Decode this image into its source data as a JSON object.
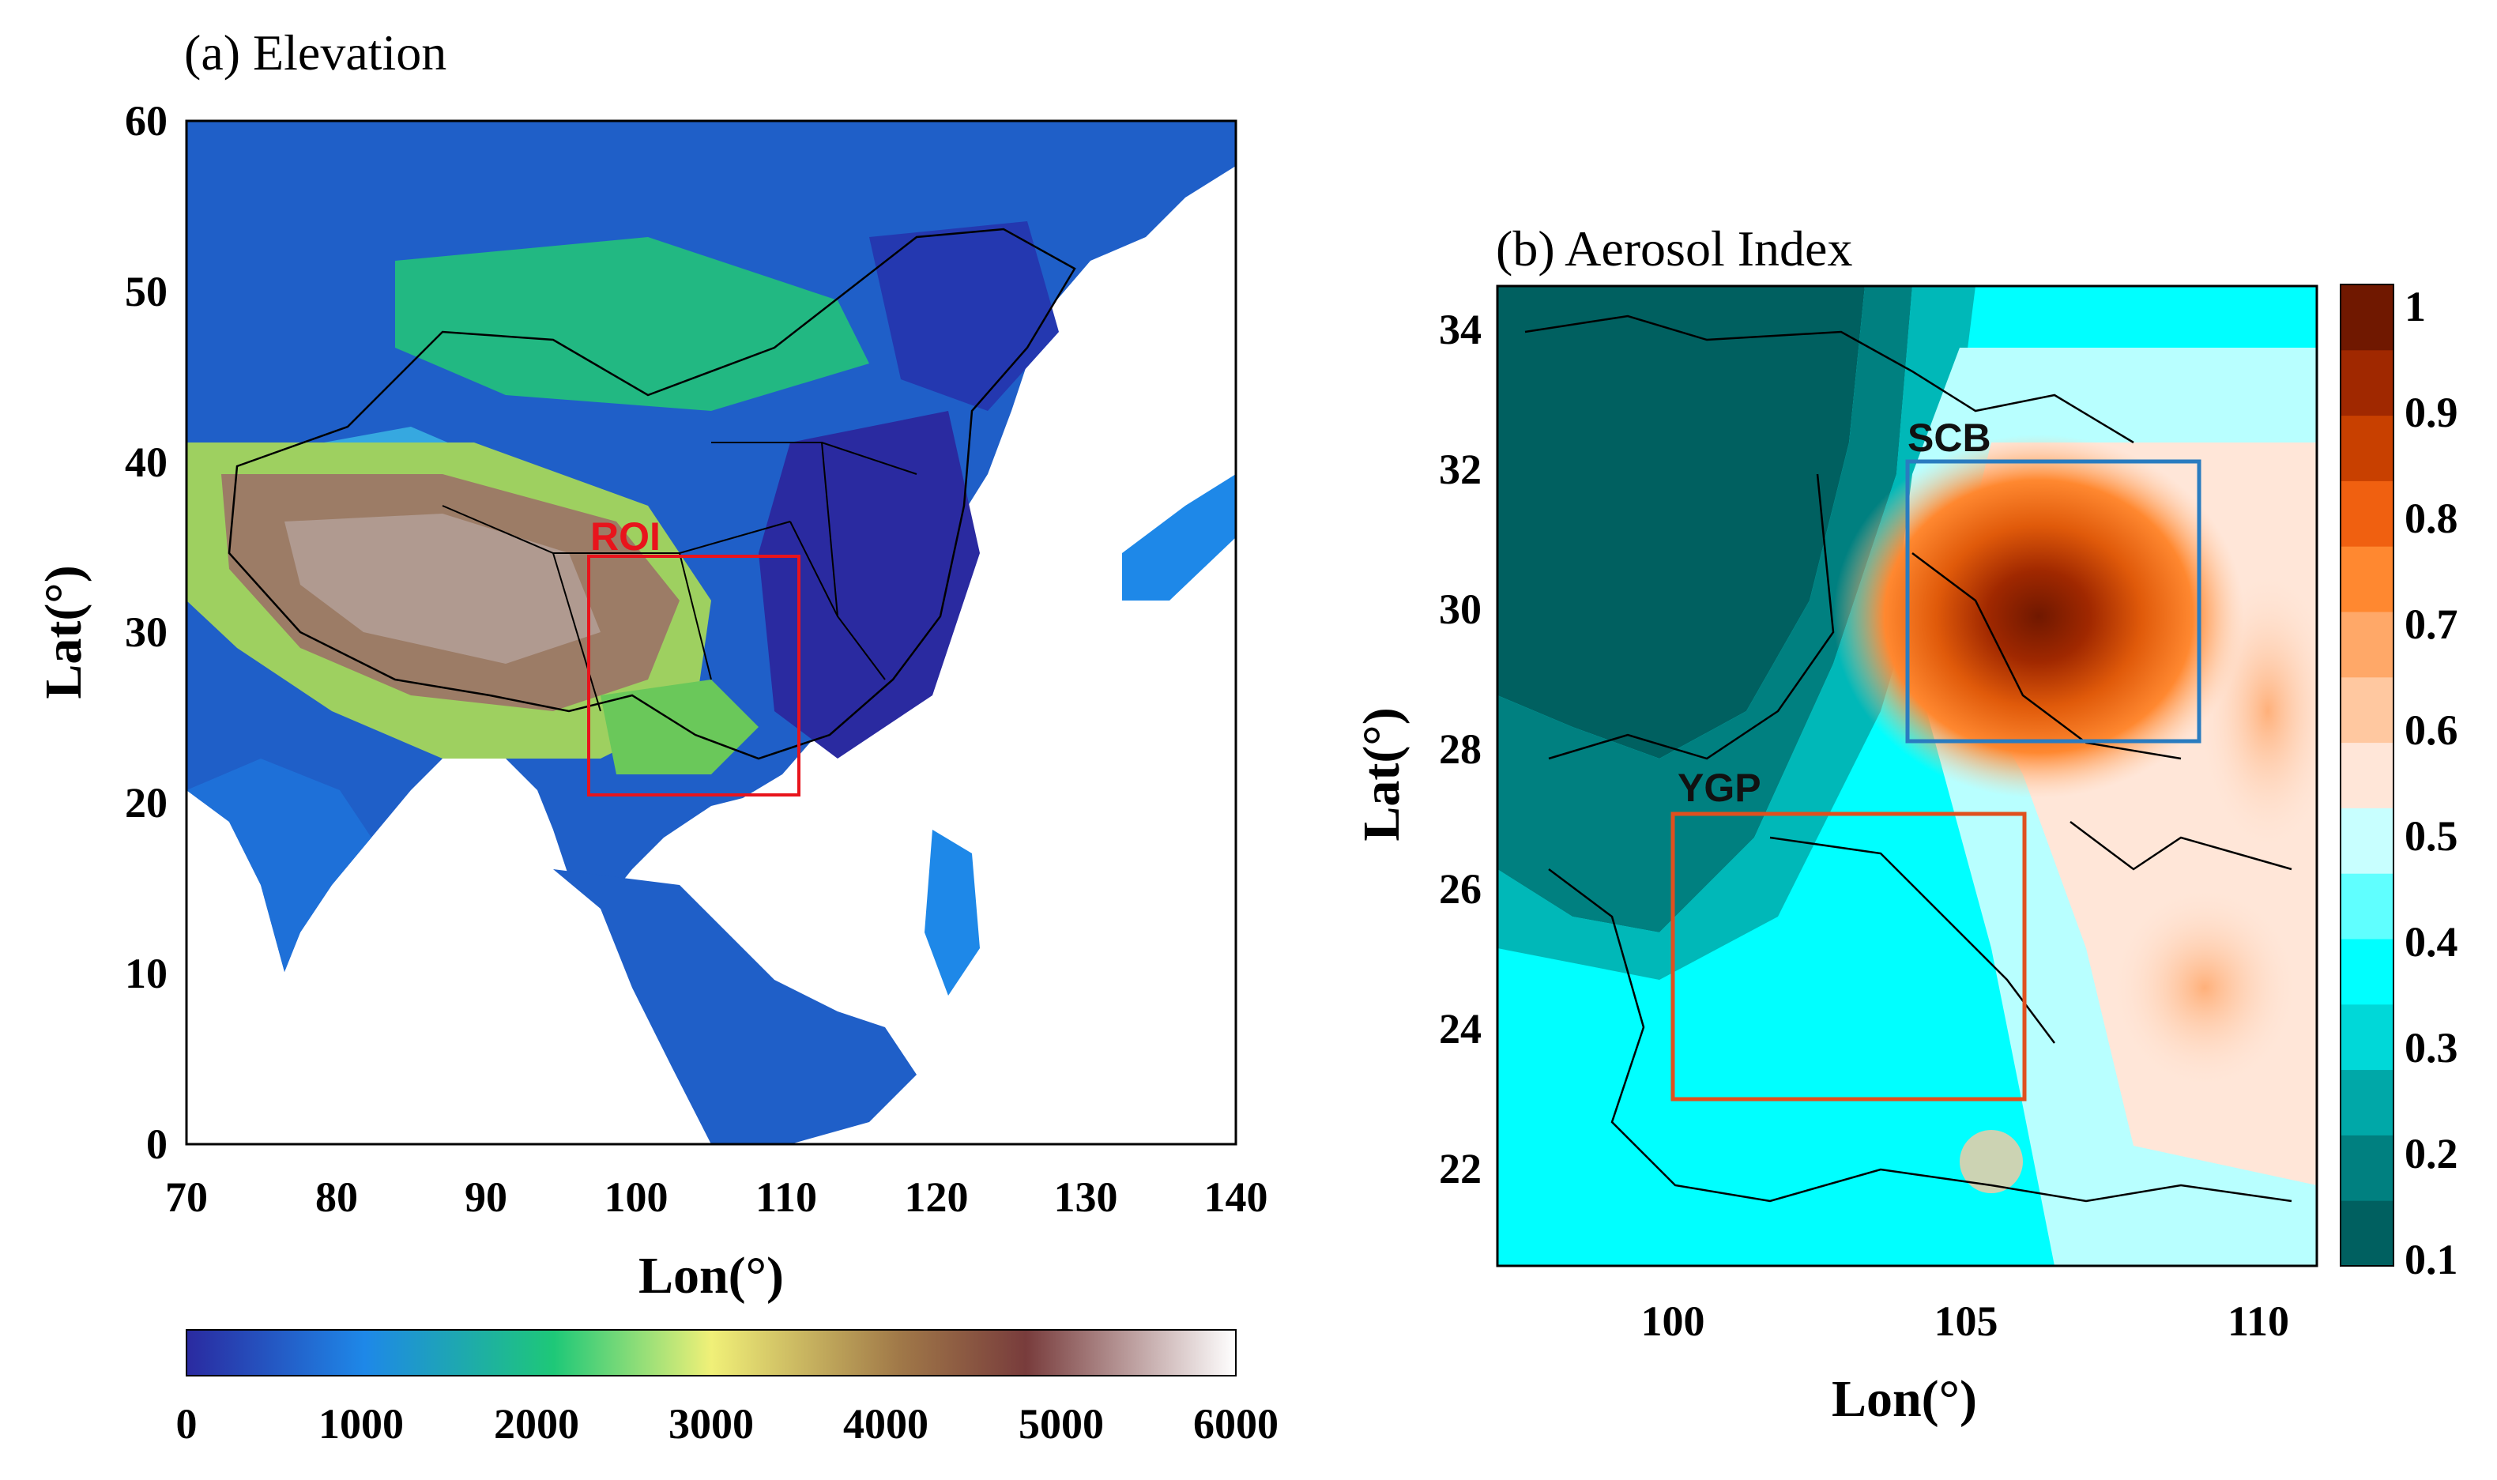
{
  "panel_a": {
    "title": "(a) Elevation",
    "xlabel": "Lon(°)",
    "ylabel": "Lat(°)",
    "xlim": [
      70,
      140
    ],
    "ylim": [
      0,
      60
    ],
    "xticks": [
      "70",
      "80",
      "90",
      "100",
      "110",
      "120",
      "130",
      "140"
    ],
    "yticks": [
      "0",
      "10",
      "20",
      "30",
      "40",
      "50",
      "60"
    ],
    "roi": {
      "label": "ROI",
      "lon": [
        97,
        111
      ],
      "lat": [
        20.5,
        34.5
      ],
      "color": "#e8141c"
    },
    "colorbar": {
      "orientation": "horizontal",
      "range": [
        0,
        6000
      ],
      "ticks": [
        "0",
        "1000",
        "2000",
        "3000",
        "4000",
        "5000",
        "6000"
      ],
      "colors": [
        "#2a2aa0",
        "#1e88e8",
        "#1ec878",
        "#f0f078",
        "#a07848",
        "#783c3c",
        "#ffffff"
      ]
    }
  },
  "panel_b": {
    "title": "(b) Aerosol Index",
    "xlabel": "Lon(°)",
    "ylabel": "Lat(°)",
    "xlim": [
      97,
      111
    ],
    "ylim": [
      20.5,
      34.5
    ],
    "xticks": [
      "100",
      "105",
      "110"
    ],
    "yticks": [
      "22",
      "24",
      "26",
      "28",
      "30",
      "32",
      "34"
    ],
    "boxes": [
      {
        "label": "SCB",
        "lon": [
          104,
          109
        ],
        "lat": [
          28,
          32
        ],
        "color": "#2a7cc0"
      },
      {
        "label": "YGP",
        "lon": [
          100,
          106
        ],
        "lat": [
          23,
          27
        ],
        "color": "#e0501e"
      }
    ],
    "colorbar": {
      "orientation": "vertical",
      "ticks": [
        "0.1",
        "0.2",
        "0.3",
        "0.4",
        "0.5",
        "0.6",
        "0.7",
        "0.8",
        "0.9",
        "1"
      ],
      "levels": [
        {
          "color": "#006060"
        },
        {
          "color": "#008080"
        },
        {
          "color": "#00a8a8"
        },
        {
          "color": "#00d8d8"
        },
        {
          "color": "#00ffff"
        },
        {
          "color": "#60ffff"
        },
        {
          "color": "#c8ffff"
        },
        {
          "color": "#ffe6d8"
        },
        {
          "color": "#ffc8a0"
        },
        {
          "color": "#ffa868"
        },
        {
          "color": "#ff8830"
        },
        {
          "color": "#f06010"
        },
        {
          "color": "#c84000"
        },
        {
          "color": "#a02800"
        },
        {
          "color": "#701800"
        }
      ]
    }
  }
}
